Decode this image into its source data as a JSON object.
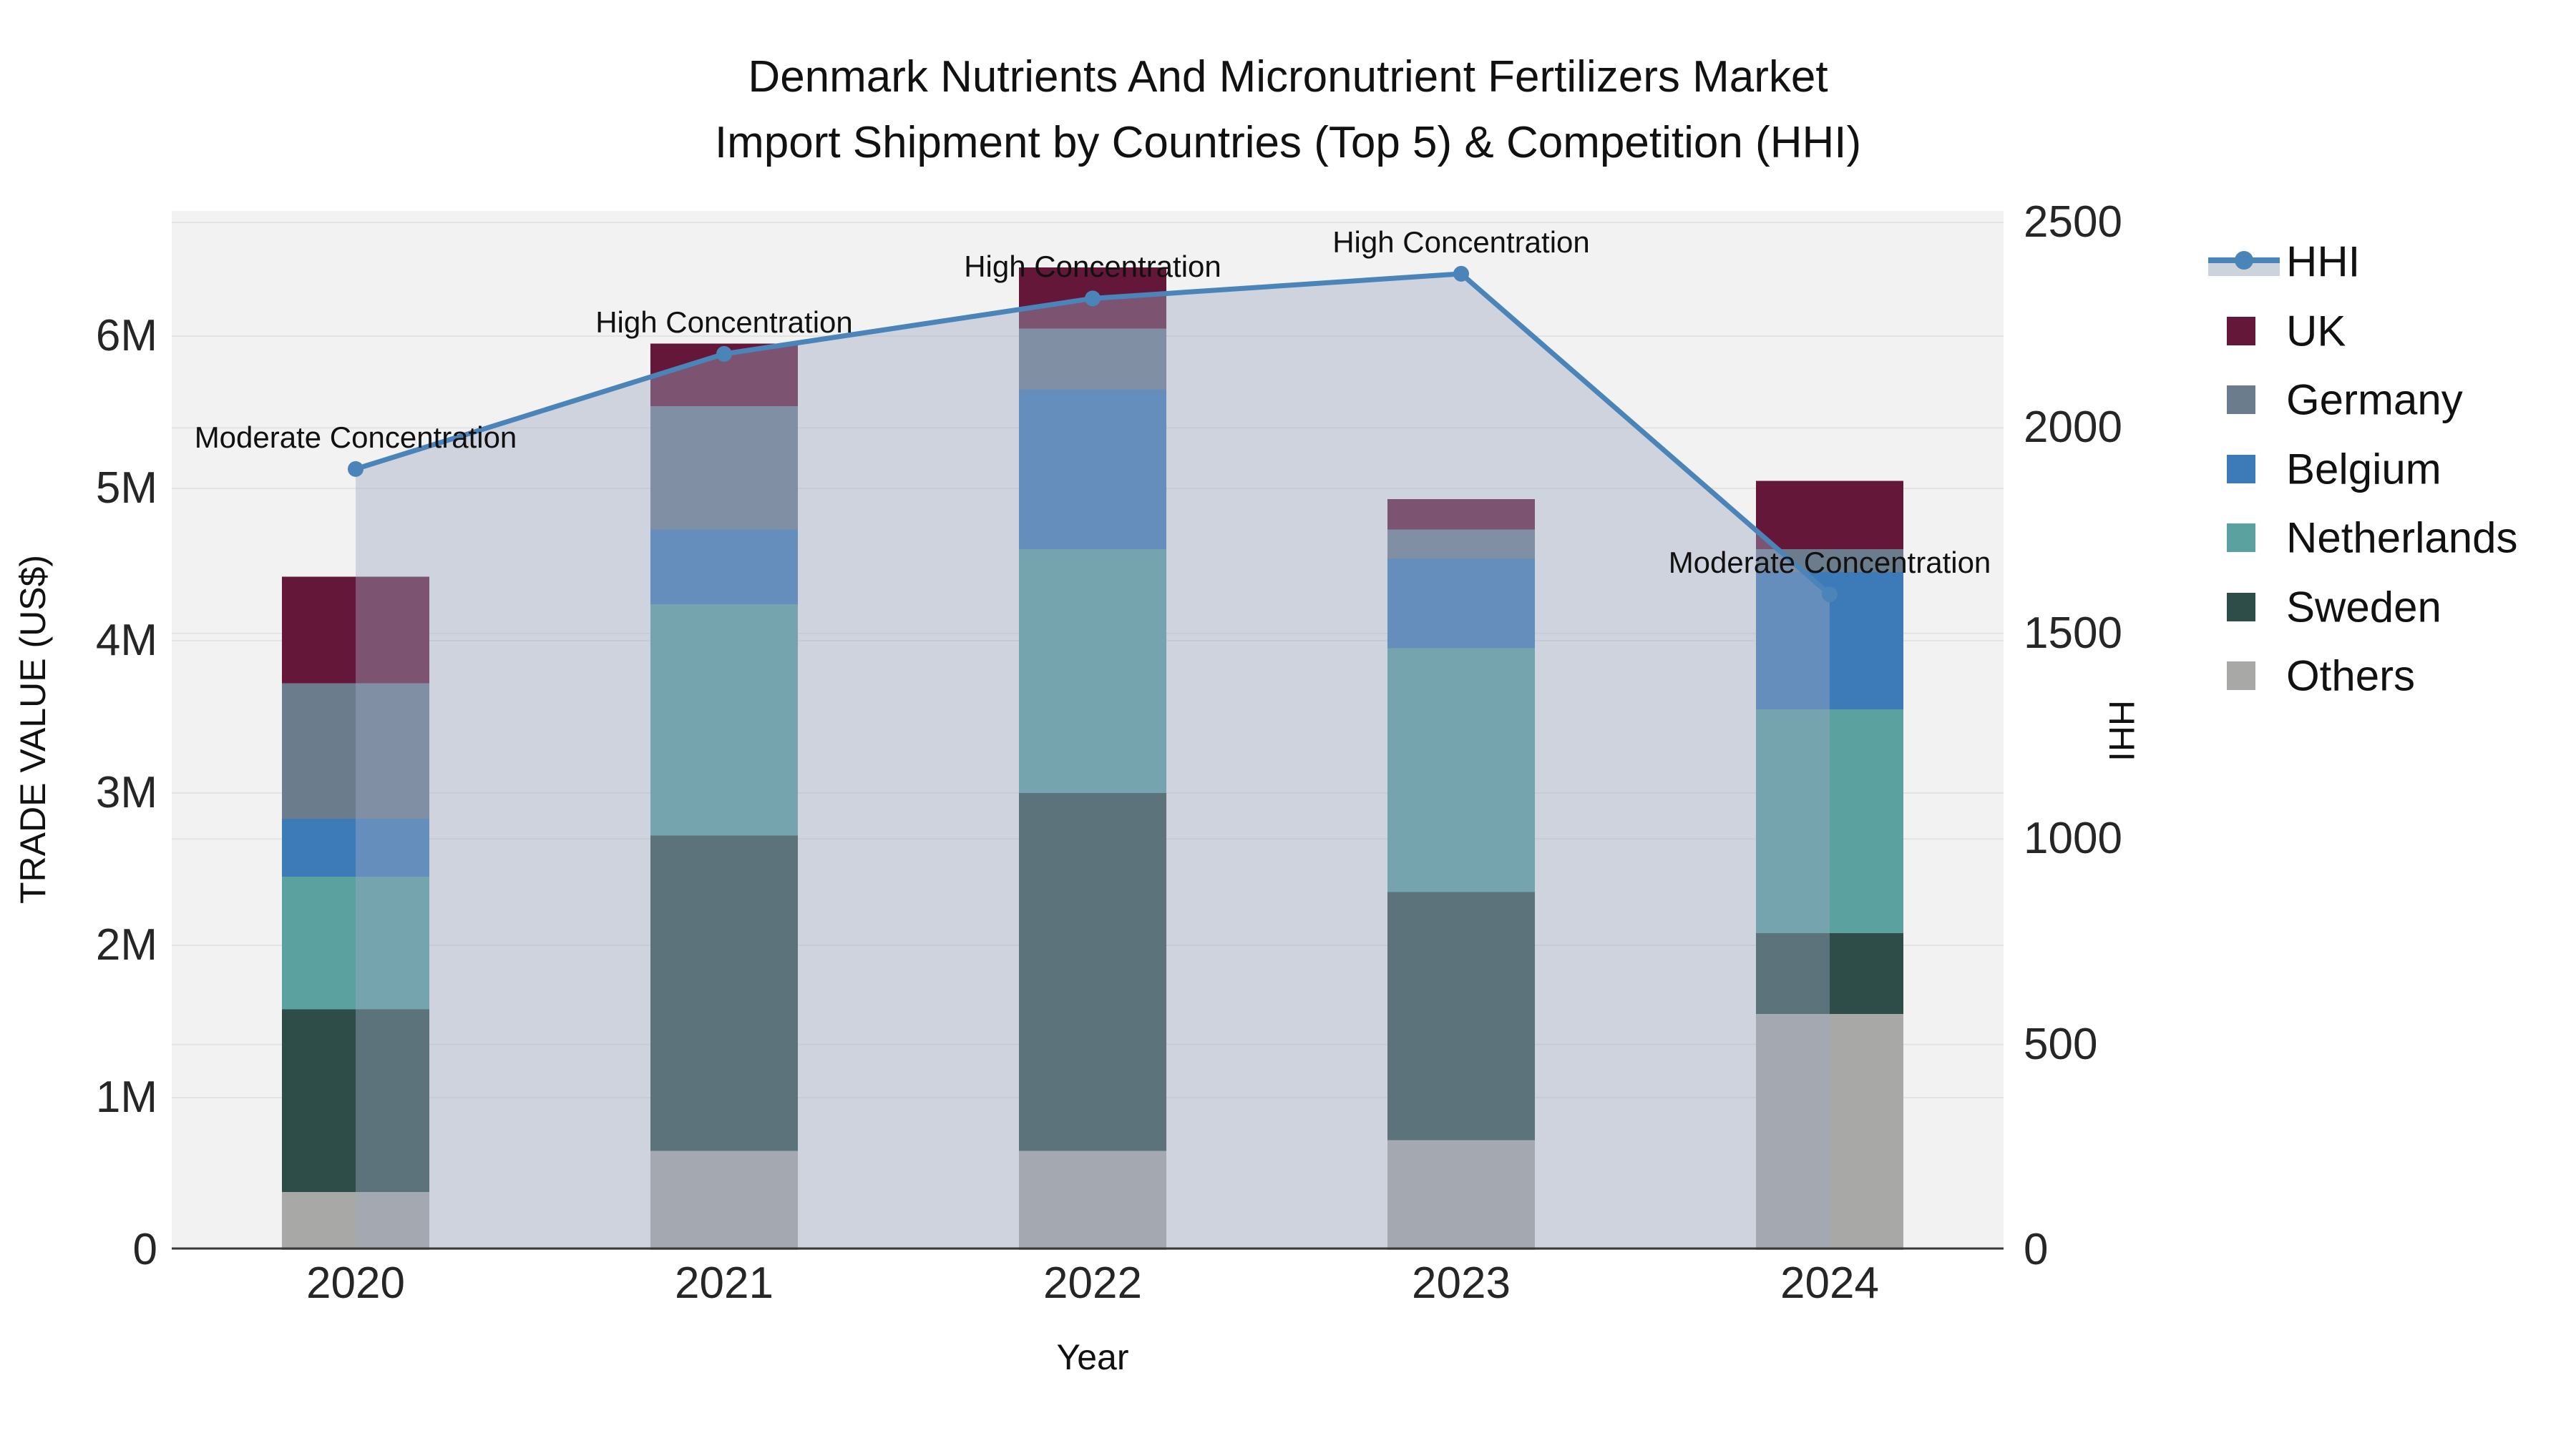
{
  "title": {
    "line1": "Denmark Nutrients And Micronutrient Fertilizers Market",
    "line2": "Import Shipment by Countries (Top 5) & Competition (HHI)"
  },
  "axes": {
    "left_title": "TRADE VALUE (US$)",
    "right_title": "HHI",
    "x_title": "Year",
    "left_ticks": [
      {
        "label": "0",
        "value": 0
      },
      {
        "label": "1M",
        "value": 1
      },
      {
        "label": "2M",
        "value": 2
      },
      {
        "label": "3M",
        "value": 3
      },
      {
        "label": "4M",
        "value": 4
      },
      {
        "label": "5M",
        "value": 5
      },
      {
        "label": "6M",
        "value": 6
      }
    ],
    "right_ticks": [
      {
        "label": "0",
        "value": 0
      },
      {
        "label": "500",
        "value": 500
      },
      {
        "label": "1000",
        "value": 1000
      },
      {
        "label": "1500",
        "value": 1500
      },
      {
        "label": "2000",
        "value": 2000
      },
      {
        "label": "2500",
        "value": 2500
      }
    ]
  },
  "colors": {
    "plot_bg": "#f2f2f2",
    "grid": "#e3e3e3",
    "baseline": "#3a3a3a",
    "hhi_line": "#4a84b8",
    "hhi_fill": "rgba(158,170,193,0.42)",
    "legend_fill_swatch": "#ccd3dc"
  },
  "chart_data": {
    "type": "bar+line",
    "title": "Denmark Nutrients And Micronutrient Fertilizers Market Import Shipment by Countries (Top 5) & Competition (HHI)",
    "xlabel": "Year",
    "ylabel": "TRADE VALUE (US$)",
    "y2label": "HHI",
    "categories": [
      "2020",
      "2021",
      "2022",
      "2023",
      "2024"
    ],
    "bar_unit": "M US$",
    "ylim": [
      0,
      6.82
    ],
    "y2lim": [
      0,
      2528
    ],
    "grid": true,
    "legend_position": "right",
    "stacking_note": "bars stacked bottom-to-top as Others, Sweden, Netherlands, Belgium, Germany, UK",
    "series": [
      {
        "name": "UK",
        "color": "#641738",
        "values": [
          0.7,
          0.41,
          0.4,
          0.2,
          0.45
        ]
      },
      {
        "name": "Germany",
        "color": "#6b7c8d",
        "values": [
          0.89,
          0.81,
          0.4,
          0.19,
          0.15
        ]
      },
      {
        "name": "Belgium",
        "color": "#3d7ab8",
        "values": [
          0.38,
          0.49,
          1.05,
          0.59,
          0.9
        ]
      },
      {
        "name": "Netherlands",
        "color": "#5ba1a0",
        "values": [
          0.87,
          1.52,
          1.6,
          1.6,
          1.47
        ]
      },
      {
        "name": "Sweden",
        "color": "#2e4d49",
        "values": [
          1.2,
          2.07,
          2.35,
          1.63,
          0.53
        ]
      },
      {
        "name": "Others",
        "color": "#a8a8a6",
        "values": [
          0.38,
          0.65,
          0.65,
          0.72,
          1.55
        ]
      }
    ],
    "bar_totals": [
      4.42,
      5.95,
      6.45,
      4.93,
      5.05
    ],
    "hhi_line": {
      "name": "HHI",
      "values": [
        1900,
        2180,
        2315,
        2375,
        1595
      ]
    },
    "annotations": [
      {
        "category": "2020",
        "text": "Moderate Concentration"
      },
      {
        "category": "2021",
        "text": "High Concentration"
      },
      {
        "category": "2022",
        "text": "High Concentration"
      },
      {
        "category": "2023",
        "text": "High Concentration"
      },
      {
        "category": "2024",
        "text": "Moderate Concentration"
      }
    ]
  }
}
